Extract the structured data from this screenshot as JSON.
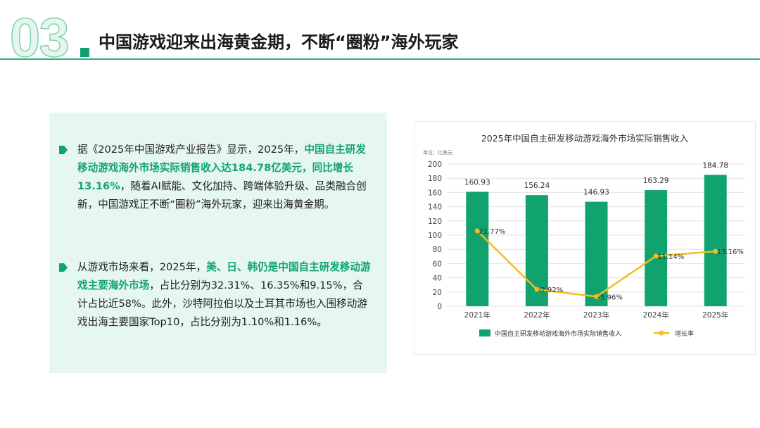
{
  "header": {
    "section_number": "03",
    "title": "中国游戏迎来出海黄金期，不断“圈粉”海外玩家"
  },
  "body": {
    "p1": {
      "t1": "据《2025年中国游戏产业报告》显示，2025年，",
      "hl": "中国自主研发移动游戏海外市场实际销售收入达184.78亿美元，同比增长13.16%",
      "t2": "，随着AI赋能、文化加持、跨端体验升级、品类融合创新，中国游戏正不断“圈粉”海外玩家，迎来出海黄金期。"
    },
    "p2": {
      "t1": "从游戏市场来看，2025年，",
      "hl": "美、日、韩仍是中国自主研发移动游戏主要海外市场",
      "t2": "，占比分别为32.31%、16.35%和9.15%，合计占比近58%。此外，沙特阿拉伯以及土耳其市场也入围移动游戏出海主要国家Top10，占比分别为1.10%和1.16%。"
    }
  },
  "colors": {
    "accent": "#11a36e",
    "bar": "#11a36e",
    "line": "#f0be1e",
    "panel_bg": "#e6f6f0"
  },
  "chart_data": {
    "type": "bar",
    "title": "2025年中国自主研发移动游戏海外市场实际销售收入",
    "unit": "单位：亿美元",
    "categories": [
      "2021年",
      "2022年",
      "2023年",
      "2024年",
      "2025年"
    ],
    "series": [
      {
        "name": "中国自主研发移动游戏海外市场实际销售收入",
        "type": "bar",
        "values": [
          160.93,
          156.24,
          146.93,
          163.29,
          184.78
        ],
        "labels": [
          "160.93",
          "156.24",
          "146.93",
          "163.29",
          "184.78"
        ]
      },
      {
        "name": "增长率",
        "type": "line",
        "values": [
          21.77,
          -2.92,
          -5.96,
          11.14,
          13.16
        ],
        "labels": [
          "21.77%",
          "-2.92%",
          "-5.96%",
          "11.14%",
          "13.16%"
        ]
      }
    ],
    "ylim": [
      0,
      200
    ],
    "yticks": [
      "0",
      "20",
      "40",
      "60",
      "80",
      "100",
      "120",
      "140",
      "160",
      "180",
      "200"
    ],
    "legend_position": "bottom",
    "grid": true
  }
}
